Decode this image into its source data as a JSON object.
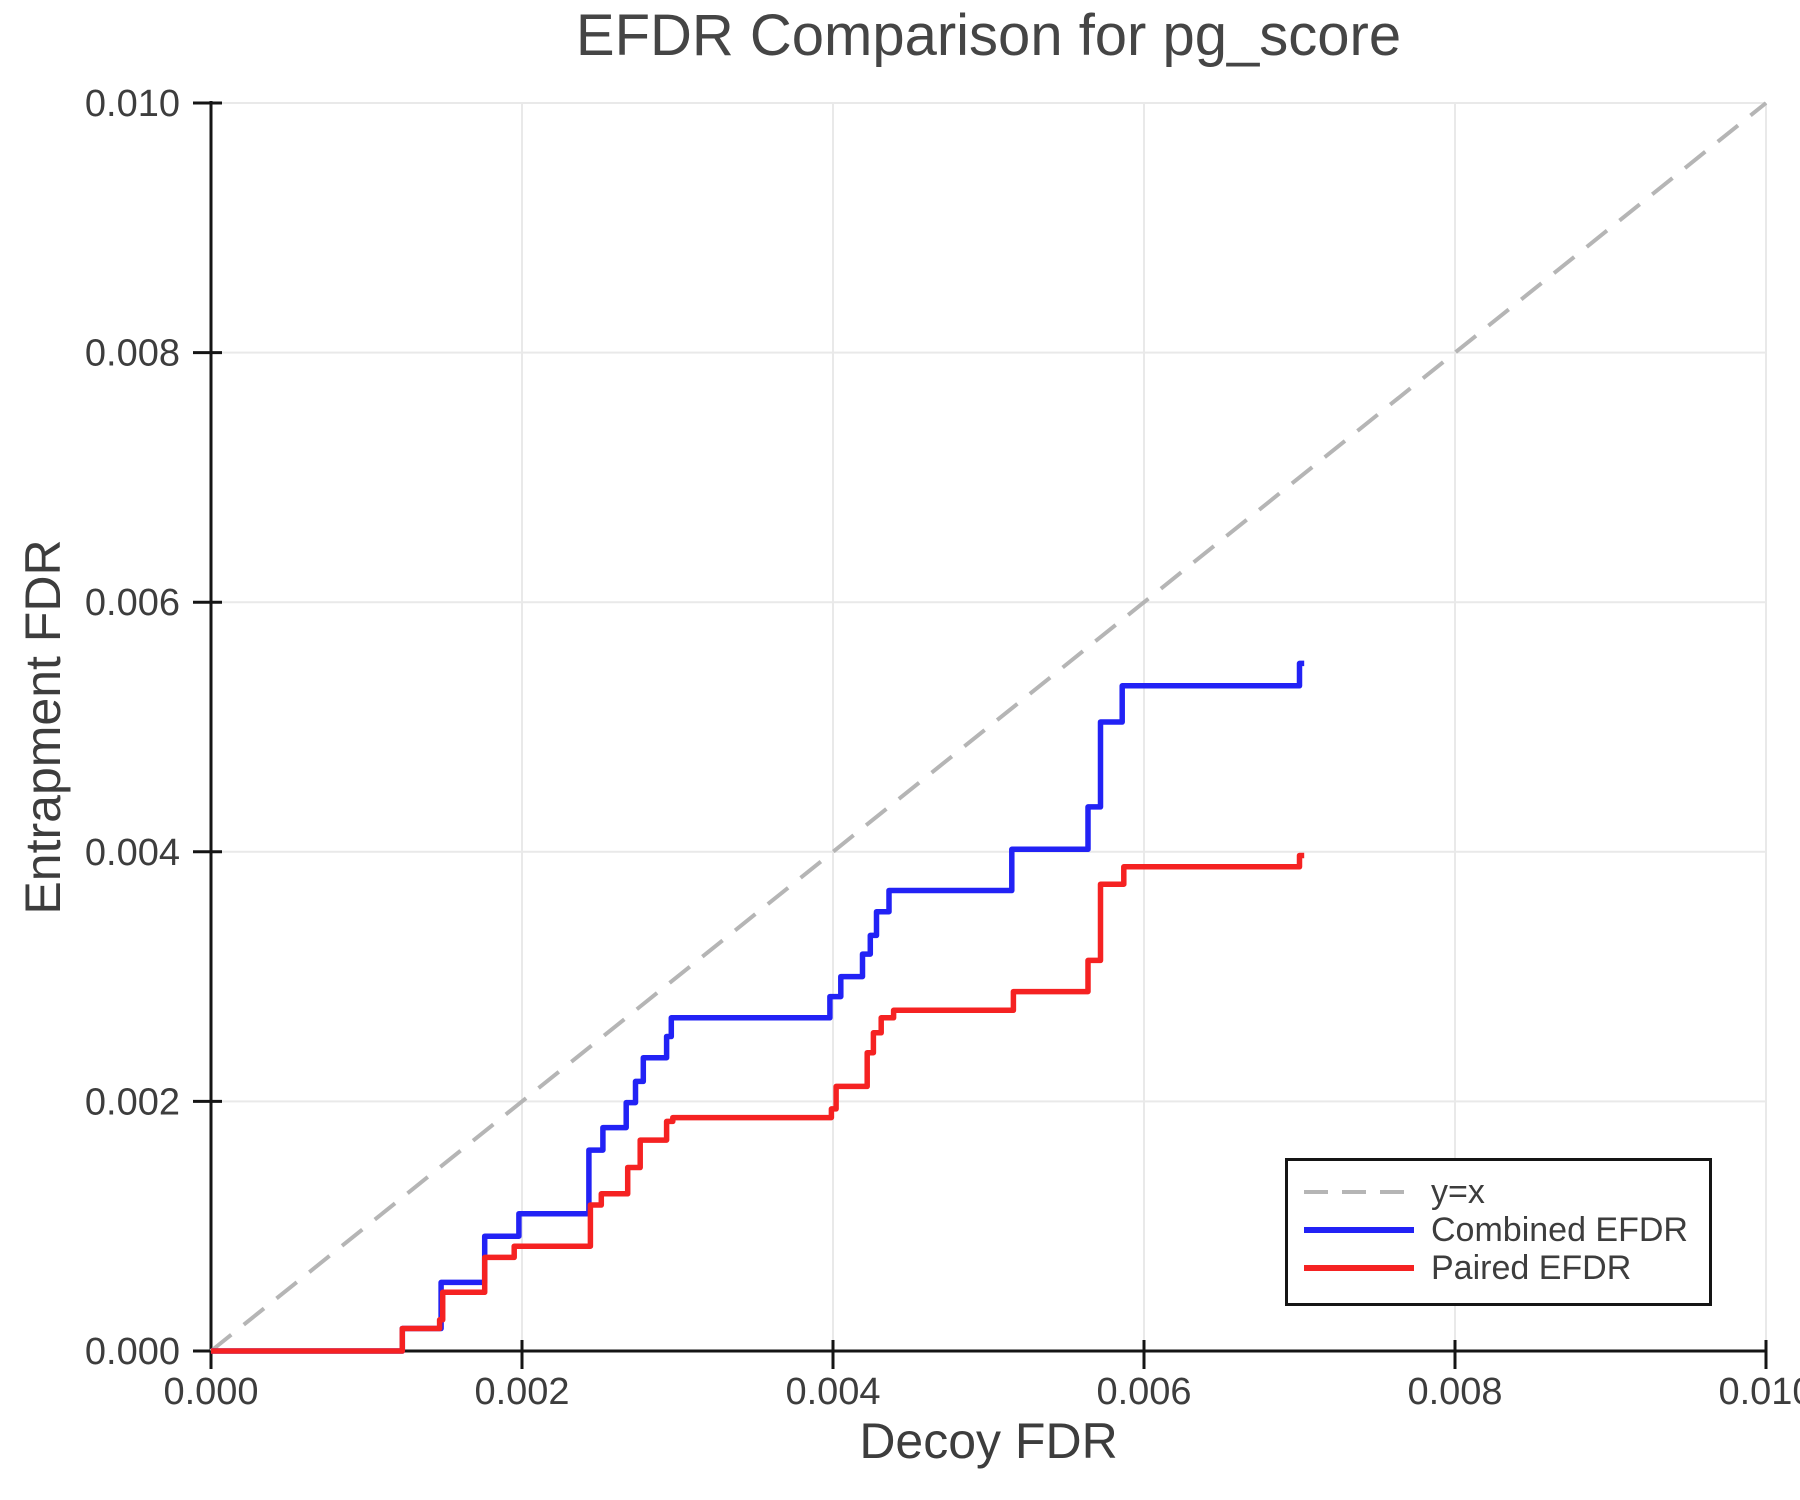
{
  "chart_data": {
    "type": "line",
    "title": "EFDR Comparison for pg_score",
    "xlabel": "Decoy FDR",
    "ylabel": "Entrapment FDR",
    "xlim": [
      0,
      0.01
    ],
    "ylim": [
      0,
      0.01
    ],
    "x_ticks": [
      0,
      0.002,
      0.004,
      0.006,
      0.008,
      0.01
    ],
    "x_tick_labels": [
      "0.000",
      "0.002",
      "0.004",
      "0.006",
      "0.008",
      "0.010"
    ],
    "y_ticks": [
      0,
      0.002,
      0.004,
      0.006,
      0.008,
      0.01
    ],
    "y_tick_labels": [
      "0.000",
      "0.002",
      "0.004",
      "0.006",
      "0.008",
      "0.010"
    ],
    "grid": true,
    "grid_color": "#e9e9e9",
    "axis_color": "#151515",
    "text_color": "#3d3d3d",
    "legend_position": "lower right",
    "series": [
      {
        "name": "y=x",
        "style": "dashed",
        "color": "#b5b5b5",
        "width": 4,
        "points": [
          [
            0,
            0
          ],
          [
            0.01,
            0.01
          ]
        ]
      },
      {
        "name": "Combined EFDR",
        "style": "solid",
        "color": "#2222f5",
        "width": 5.5,
        "points": [
          [
            0.0,
            0.0
          ],
          [
            0.00123,
            0.0
          ],
          [
            0.00123,
            0.00018
          ],
          [
            0.00148,
            0.00018
          ],
          [
            0.00148,
            0.00055
          ],
          [
            0.00176,
            0.00055
          ],
          [
            0.00176,
            0.00092
          ],
          [
            0.00198,
            0.00092
          ],
          [
            0.00198,
            0.0011
          ],
          [
            0.00243,
            0.0011
          ],
          [
            0.00243,
            0.00161
          ],
          [
            0.00252,
            0.00161
          ],
          [
            0.00252,
            0.00179
          ],
          [
            0.00267,
            0.00179
          ],
          [
            0.00267,
            0.00199
          ],
          [
            0.00273,
            0.00199
          ],
          [
            0.00273,
            0.00216
          ],
          [
            0.00278,
            0.00216
          ],
          [
            0.00278,
            0.00235
          ],
          [
            0.00293,
            0.00235
          ],
          [
            0.00293,
            0.00252
          ],
          [
            0.00296,
            0.00252
          ],
          [
            0.00296,
            0.00267
          ],
          [
            0.00398,
            0.00267
          ],
          [
            0.00398,
            0.00284
          ],
          [
            0.00405,
            0.00284
          ],
          [
            0.00405,
            0.003
          ],
          [
            0.00419,
            0.003
          ],
          [
            0.00419,
            0.00318
          ],
          [
            0.00424,
            0.00318
          ],
          [
            0.00424,
            0.00333
          ],
          [
            0.00428,
            0.00333
          ],
          [
            0.00428,
            0.00352
          ],
          [
            0.00436,
            0.00352
          ],
          [
            0.00436,
            0.00369
          ],
          [
            0.00515,
            0.00369
          ],
          [
            0.00515,
            0.00402
          ],
          [
            0.00564,
            0.00402
          ],
          [
            0.00564,
            0.00436
          ],
          [
            0.00572,
            0.00436
          ],
          [
            0.00572,
            0.00504
          ],
          [
            0.00586,
            0.00504
          ],
          [
            0.00586,
            0.00533
          ],
          [
            0.007,
            0.00533
          ],
          [
            0.007,
            0.00551
          ],
          [
            0.00703,
            0.00551
          ]
        ]
      },
      {
        "name": "Paired EFDR",
        "style": "solid",
        "color": "#f52222",
        "width": 5.5,
        "points": [
          [
            0.0,
            0.0
          ],
          [
            0.00123,
            0.0
          ],
          [
            0.00123,
            0.00018
          ],
          [
            0.00147,
            0.00018
          ],
          [
            0.00147,
            0.00025
          ],
          [
            0.00149,
            0.00025
          ],
          [
            0.00149,
            0.00047
          ],
          [
            0.00176,
            0.00047
          ],
          [
            0.00176,
            0.00075
          ],
          [
            0.00195,
            0.00075
          ],
          [
            0.00195,
            0.00084
          ],
          [
            0.00244,
            0.00084
          ],
          [
            0.00244,
            0.00117
          ],
          [
            0.00251,
            0.00117
          ],
          [
            0.00251,
            0.00126
          ],
          [
            0.00268,
            0.00126
          ],
          [
            0.00268,
            0.00147
          ],
          [
            0.00276,
            0.00147
          ],
          [
            0.00276,
            0.00169
          ],
          [
            0.00293,
            0.00169
          ],
          [
            0.00293,
            0.00184
          ],
          [
            0.00297,
            0.00184
          ],
          [
            0.00297,
            0.00187
          ],
          [
            0.00399,
            0.00187
          ],
          [
            0.00399,
            0.00194
          ],
          [
            0.00402,
            0.00194
          ],
          [
            0.00402,
            0.00212
          ],
          [
            0.00422,
            0.00212
          ],
          [
            0.00422,
            0.00239
          ],
          [
            0.00426,
            0.00239
          ],
          [
            0.00426,
            0.00255
          ],
          [
            0.00431,
            0.00255
          ],
          [
            0.00431,
            0.00267
          ],
          [
            0.00439,
            0.00267
          ],
          [
            0.00439,
            0.00273
          ],
          [
            0.00516,
            0.00273
          ],
          [
            0.00516,
            0.00288
          ],
          [
            0.00564,
            0.00288
          ],
          [
            0.00564,
            0.00313
          ],
          [
            0.00572,
            0.00313
          ],
          [
            0.00572,
            0.00374
          ],
          [
            0.00587,
            0.00374
          ],
          [
            0.00587,
            0.00388
          ],
          [
            0.007,
            0.00388
          ],
          [
            0.007,
            0.00397
          ],
          [
            0.00703,
            0.00397
          ]
        ]
      }
    ]
  }
}
